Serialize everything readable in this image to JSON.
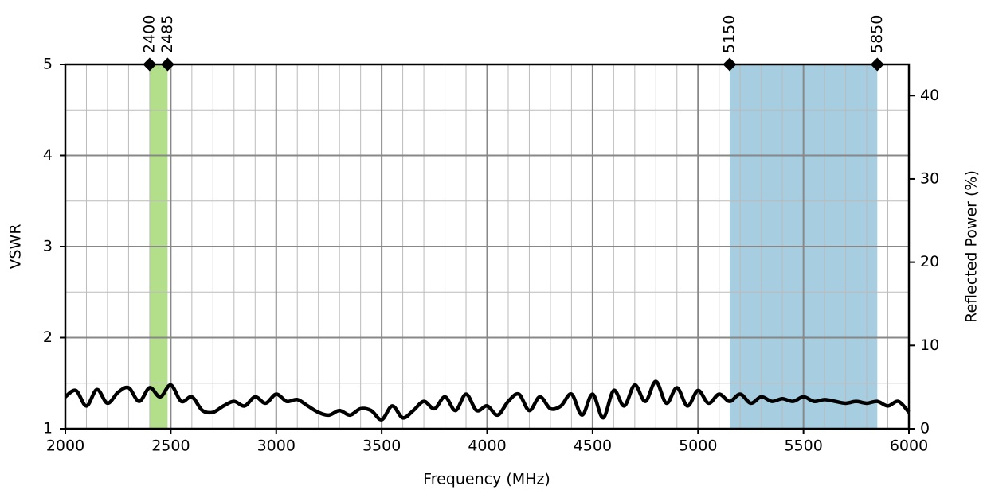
{
  "chart_data": {
    "type": "line",
    "xlabel": "Frequency (MHz)",
    "ylabel": "VSWR",
    "y2label": "Reflected Power (%)",
    "x": [
      2000,
      2050,
      2100,
      2150,
      2200,
      2250,
      2300,
      2350,
      2400,
      2450,
      2500,
      2550,
      2600,
      2650,
      2700,
      2750,
      2800,
      2850,
      2900,
      2950,
      3000,
      3050,
      3100,
      3150,
      3200,
      3250,
      3300,
      3350,
      3400,
      3450,
      3500,
      3550,
      3600,
      3650,
      3700,
      3750,
      3800,
      3850,
      3900,
      3950,
      4000,
      4050,
      4100,
      4150,
      4200,
      4250,
      4300,
      4350,
      4400,
      4450,
      4500,
      4550,
      4600,
      4650,
      4700,
      4750,
      4800,
      4850,
      4900,
      4950,
      5000,
      5050,
      5100,
      5150,
      5200,
      5250,
      5300,
      5350,
      5400,
      5450,
      5500,
      5550,
      5600,
      5650,
      5700,
      5750,
      5800,
      5850,
      5900,
      5950,
      6000
    ],
    "series": [
      {
        "name": "VSWR",
        "color": "#000000",
        "values": [
          1.35,
          1.42,
          1.25,
          1.43,
          1.28,
          1.4,
          1.45,
          1.3,
          1.45,
          1.35,
          1.48,
          1.3,
          1.35,
          1.2,
          1.18,
          1.25,
          1.3,
          1.25,
          1.35,
          1.28,
          1.38,
          1.3,
          1.32,
          1.25,
          1.18,
          1.15,
          1.2,
          1.15,
          1.22,
          1.2,
          1.1,
          1.25,
          1.12,
          1.2,
          1.3,
          1.22,
          1.35,
          1.2,
          1.38,
          1.2,
          1.25,
          1.15,
          1.3,
          1.38,
          1.2,
          1.35,
          1.22,
          1.25,
          1.38,
          1.15,
          1.38,
          1.12,
          1.42,
          1.25,
          1.48,
          1.3,
          1.52,
          1.28,
          1.45,
          1.25,
          1.42,
          1.28,
          1.38,
          1.3,
          1.38,
          1.28,
          1.35,
          1.3,
          1.33,
          1.3,
          1.35,
          1.3,
          1.32,
          1.3,
          1.28,
          1.3,
          1.28,
          1.3,
          1.25,
          1.3,
          1.18
        ]
      }
    ],
    "bands": [
      {
        "start": 2400,
        "end": 2485,
        "color": "#b3de8a"
      },
      {
        "start": 5150,
        "end": 5850,
        "color": "#a6cde0"
      }
    ],
    "xlim": [
      2000,
      6000
    ],
    "xticks": [
      2000,
      2500,
      3000,
      3500,
      4000,
      4500,
      5000,
      5500,
      6000
    ],
    "ylim": [
      1,
      5
    ],
    "yticks": [
      1,
      2,
      3,
      4,
      5
    ],
    "y2lim": [
      0,
      43.75
    ],
    "y2ticks": [
      0,
      10,
      20,
      30,
      40
    ],
    "x_minor_step": 100,
    "y_minor_step": 0.5,
    "grid": true
  }
}
